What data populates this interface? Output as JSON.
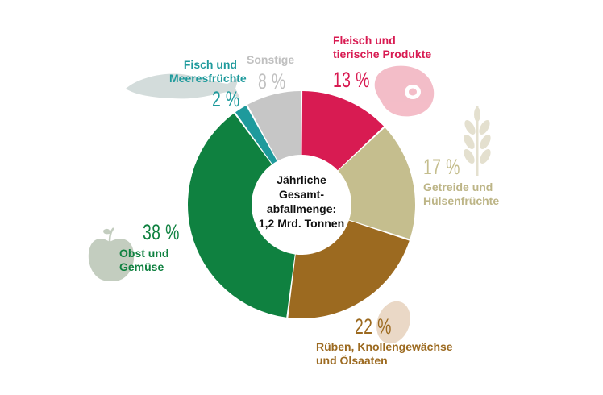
{
  "chart_data": {
    "type": "pie",
    "center_text": "Jährliche Gesamt-abfallmenge: 1,2 Mrd. Tonnen",
    "slices": [
      {
        "key": "fleisch",
        "label": "Fleisch und tierische Produkte",
        "value": 13,
        "display": "13 %",
        "color": "#d81b52"
      },
      {
        "key": "getreide",
        "label": "Getreide und Hülsenfrüchte",
        "value": 17,
        "display": "17 %",
        "color": "#c5be8e"
      },
      {
        "key": "rueben",
        "label": "Rüben, Knollengewächse und Ölsaaten",
        "value": 22,
        "display": "22 %",
        "color": "#9c6a20"
      },
      {
        "key": "obst",
        "label": "Obst und Gemüse",
        "value": 38,
        "display": "38 %",
        "color": "#0f8140"
      },
      {
        "key": "fisch",
        "label": "Fisch und Meeresfrüchte",
        "value": 2,
        "display": "2 %",
        "color": "#1e9a9c"
      },
      {
        "key": "sonstige",
        "label": "Sonstige",
        "value": 8,
        "display": "8 %",
        "color": "#c6c6c6"
      }
    ]
  },
  "labels": {
    "fleisch": {
      "line1": "Fleisch und",
      "line2": "tierische Produkte",
      "pct": "13 %"
    },
    "getreide": {
      "pct": "17 %",
      "line1": "Getreide und",
      "line2": "Hülsenfrüchte"
    },
    "rueben": {
      "pct": "22 %",
      "line1": "Rüben, Knollengewächse",
      "line2": "und Ölsaaten"
    },
    "obst": {
      "pct": "38 %",
      "line1": "Obst und",
      "line2": "Gemüse"
    },
    "fisch": {
      "line1": "Fisch und",
      "line2": "Meeresfrüchte",
      "pct": "2 %"
    },
    "sonstige": {
      "line1": "Sonstige",
      "pct": "8 %"
    },
    "center": {
      "line1": "Jährliche",
      "line2": "Gesamt-",
      "line3": "abfallmenge:",
      "line4": "1,2 Mrd. Tonnen"
    }
  },
  "colors": {
    "fleisch": "#d81b52",
    "getreide": "#c5be8e",
    "rueben": "#9c6a20",
    "obst": "#0f8140",
    "fisch": "#1e9a9c",
    "sonstige": "#b8b8b8"
  },
  "icons": [
    "fish-icon",
    "meat-icon",
    "wheat-icon",
    "potato-icon",
    "apple-icon"
  ]
}
